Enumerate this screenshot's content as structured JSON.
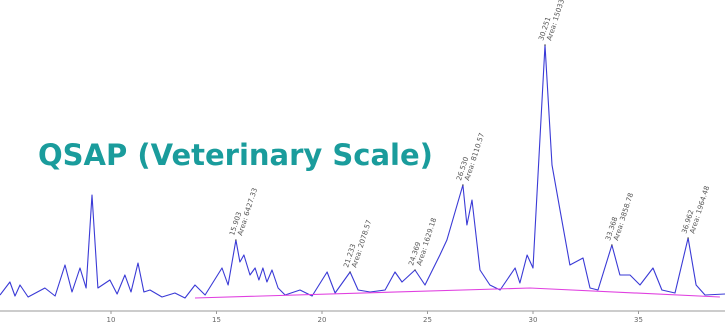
{
  "chart_data": {
    "type": "line",
    "title": "QSAP (Veterinary Scale)",
    "xlim": [
      4.74,
      39.1
    ],
    "xticks": [
      10,
      15,
      20,
      25,
      30,
      35
    ],
    "ylim": [
      0,
      310
    ],
    "series": [
      {
        "color": "#3a3ad6",
        "x": [
          4.74,
          5.21,
          5.45,
          5.69,
          6.07,
          6.87,
          7.35,
          7.82,
          8.15,
          8.53,
          8.82,
          9.1,
          9.38,
          9.95,
          10.29,
          10.66,
          10.95,
          11.28,
          11.56,
          11.85,
          12.42,
          13.03,
          13.51,
          13.98,
          14.46,
          15.26,
          15.55,
          15.92,
          16.11,
          16.3,
          16.59,
          16.83,
          17.01,
          17.2,
          17.39,
          17.63,
          17.92,
          18.25,
          18.96,
          19.53,
          20.24,
          20.62,
          21.33,
          21.71,
          22.28,
          22.99,
          23.46,
          23.79,
          24.41,
          24.88,
          25.59,
          25.92,
          26.68,
          26.87,
          27.11,
          27.49,
          27.96,
          28.44,
          29.15,
          29.38,
          29.72,
          30.0,
          30.57,
          30.9,
          31.28,
          31.75,
          32.37,
          32.7,
          33.08,
          33.74,
          34.12,
          34.6,
          35.07,
          35.69,
          36.11,
          36.73,
          37.35,
          37.73,
          38.15,
          39.1
        ],
        "values": [
          15,
          28,
          14,
          25,
          13,
          22,
          14,
          45,
          18,
          42,
          22,
          115,
          22,
          30,
          16,
          35,
          18,
          47,
          18,
          20,
          13,
          17,
          12,
          25,
          15,
          42,
          25,
          70,
          48,
          55,
          35,
          42,
          30,
          42,
          28,
          40,
          22,
          15,
          20,
          14,
          38,
          17,
          38,
          20,
          18,
          20,
          38,
          28,
          40,
          25,
          55,
          70,
          125,
          85,
          110,
          40,
          25,
          20,
          42,
          27,
          55,
          42,
          265,
          145,
          100,
          45,
          52,
          22,
          20,
          65,
          35,
          35,
          25,
          42,
          20,
          17,
          72,
          25,
          15,
          16
        ]
      },
      {
        "color": "#e040e0",
        "x": [
          13.98,
          29.86,
          38.86
        ],
        "values": [
          12,
          22,
          13
        ]
      }
    ],
    "annotations": [
      {
        "x": 15.92,
        "y": 70,
        "label": "15.903",
        "area": "Area: 6427.33"
      },
      {
        "x": 21.33,
        "y": 38,
        "label": "21.233",
        "area": "Area: 2078.57"
      },
      {
        "x": 24.41,
        "y": 40,
        "label": "24.369",
        "area": "Area: 1629.18"
      },
      {
        "x": 26.68,
        "y": 125,
        "label": "26.530",
        "area": "Area: 8110.57"
      },
      {
        "x": 30.57,
        "y": 265,
        "label": "30.251",
        "area": "Area: 15033"
      },
      {
        "x": 33.74,
        "y": 65,
        "label": "33.368",
        "area": "Area: 3858.78"
      },
      {
        "x": 37.35,
        "y": 72,
        "label": "36.962",
        "area": "Area: 1964.48"
      }
    ]
  }
}
